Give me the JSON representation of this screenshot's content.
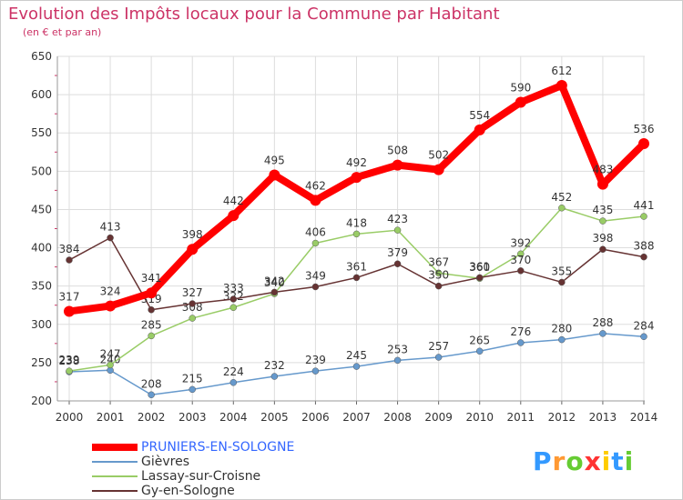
{
  "chart_data": {
    "type": "line",
    "title": "Evolution des Impôts locaux pour la Commune par Habitant",
    "subtitle": "(en € et par an)",
    "xlabel": "",
    "ylabel": "",
    "x": [
      "2000",
      "2001",
      "2002",
      "2003",
      "2004",
      "2005",
      "2006",
      "2007",
      "2008",
      "2009",
      "2010",
      "2011",
      "2012",
      "2013",
      "2014"
    ],
    "ylim": [
      200,
      650
    ],
    "yticks": [
      200,
      250,
      300,
      350,
      400,
      450,
      500,
      550,
      600,
      650
    ],
    "grid": true,
    "legend_position": "bottom-left",
    "series": [
      {
        "name": "PRUNIERS-EN-SOLOGNE",
        "color": "#ff0000",
        "emphasis": true,
        "values": [
          317,
          324,
          341,
          398,
          442,
          495,
          462,
          492,
          508,
          502,
          554,
          590,
          612,
          483,
          536
        ]
      },
      {
        "name": "Gièvres",
        "color": "#6699cc",
        "emphasis": false,
        "values": [
          238,
          240,
          208,
          215,
          224,
          232,
          239,
          245,
          253,
          257,
          265,
          276,
          280,
          288,
          284
        ]
      },
      {
        "name": "Lassay-sur-Croisne",
        "color": "#99cc66",
        "emphasis": false,
        "values": [
          239,
          247,
          285,
          308,
          322,
          340,
          406,
          418,
          423,
          367,
          360,
          392,
          452,
          435,
          441
        ]
      },
      {
        "name": "Gy-en-Sologne",
        "color": "#663333",
        "emphasis": false,
        "values": [
          384,
          413,
          319,
          327,
          333,
          342,
          349,
          361,
          379,
          350,
          361,
          370,
          355,
          398,
          388
        ]
      }
    ]
  },
  "logo": {
    "letters": [
      "P",
      "r",
      "o",
      "x",
      "i",
      "t",
      "i"
    ],
    "colors": [
      "#3399ff",
      "#ff9933",
      "#66cc33",
      "#ff3333",
      "#ffcc00",
      "#3399ff",
      "#66cc33"
    ]
  }
}
